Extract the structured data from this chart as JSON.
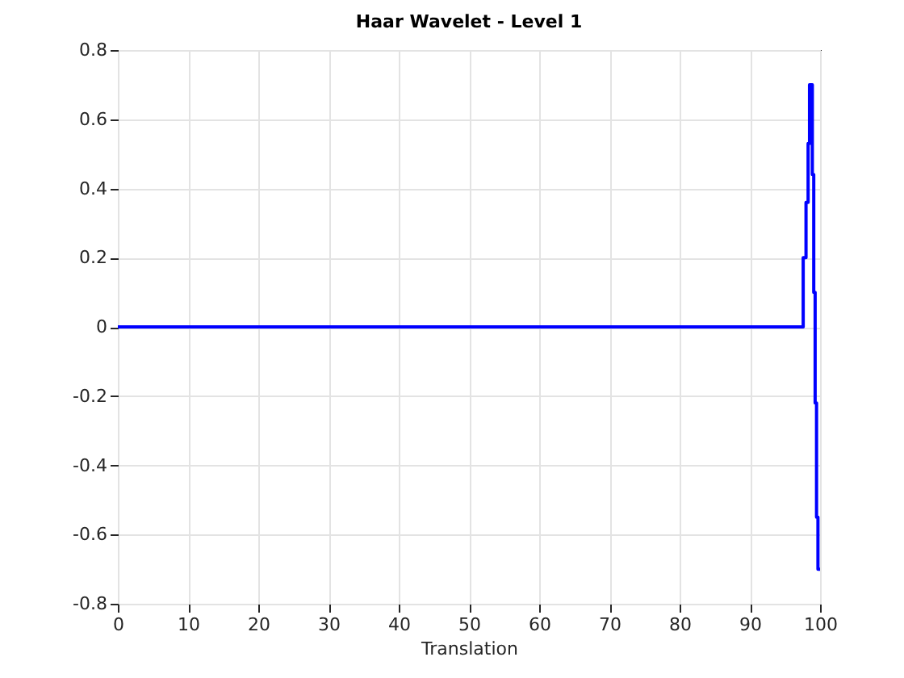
{
  "chart_data": {
    "type": "step",
    "title": "Haar Wavelet - Level 1",
    "xlabel": "Translation",
    "x": [
      0,
      97.6,
      98.0,
      98.3,
      98.5,
      98.9,
      99.1,
      99.3,
      99.5,
      99.7,
      100
    ],
    "series": [
      {
        "color": "#0000ff",
        "values": [
          0,
          0.2,
          0.36,
          0.53,
          0.7,
          0.44,
          0.1,
          -0.22,
          -0.55,
          -0.7,
          -0.7
        ]
      }
    ],
    "xlim": [
      0,
      100
    ],
    "xticks": [
      0,
      10,
      20,
      30,
      40,
      50,
      60,
      70,
      80,
      90,
      100
    ],
    "ylim": [
      -0.8,
      0.8
    ],
    "yticks": [
      -0.8,
      -0.6,
      -0.4,
      -0.2,
      0,
      0.2,
      0.4,
      0.6,
      0.8
    ],
    "grid": true
  }
}
